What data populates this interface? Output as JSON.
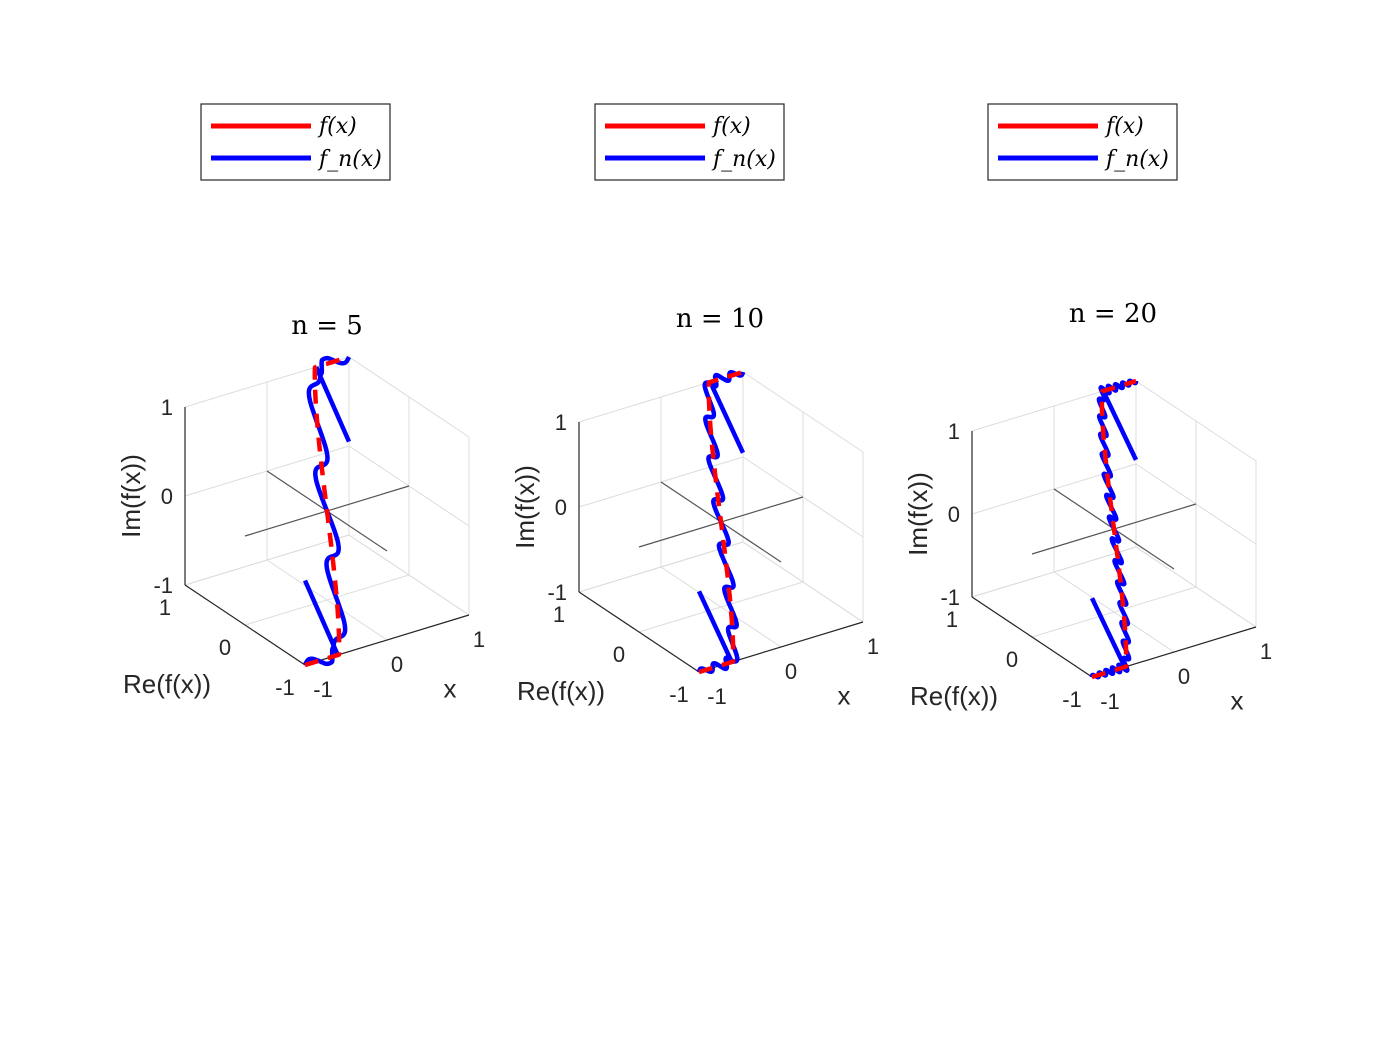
{
  "chart_data": [
    {
      "type": "line",
      "title": "n = 5",
      "n": 5,
      "xlabel": "x",
      "ylabel": "Re(f(x))",
      "zlabel": "Im(f(x))",
      "x_ticks": [
        "-1",
        "0",
        "1"
      ],
      "y_ticks": [
        "-1",
        "0",
        "1"
      ],
      "z_ticks": [
        "-1",
        "0",
        "1"
      ],
      "xlim": [
        -1,
        1
      ],
      "ylim": [
        -1,
        1
      ],
      "zlim": [
        -1,
        1
      ],
      "grid": true,
      "legend": {
        "location": "top",
        "entries": [
          "f(x)",
          "f_n(x)"
        ]
      },
      "series": [
        {
          "name": "f(x)",
          "color": "#ff0000"
        },
        {
          "name": "f_n(x)",
          "color": "#0000ff"
        }
      ]
    },
    {
      "type": "line",
      "title": "n = 10",
      "n": 10,
      "xlabel": "x",
      "ylabel": "Re(f(x))",
      "zlabel": "Im(f(x))",
      "x_ticks": [
        "-1",
        "0",
        "1"
      ],
      "y_ticks": [
        "-1",
        "0",
        "1"
      ],
      "z_ticks": [
        "-1",
        "0",
        "1"
      ],
      "xlim": [
        -1,
        1
      ],
      "ylim": [
        -1,
        1
      ],
      "zlim": [
        -1,
        1
      ],
      "grid": true,
      "legend": {
        "location": "top",
        "entries": [
          "f(x)",
          "f_n(x)"
        ]
      },
      "series": [
        {
          "name": "f(x)",
          "color": "#ff0000"
        },
        {
          "name": "f_n(x)",
          "color": "#0000ff"
        }
      ]
    },
    {
      "type": "line",
      "title": "n = 20",
      "n": 20,
      "xlabel": "x",
      "ylabel": "Re(f(x))",
      "zlabel": "Im(f(x))",
      "x_ticks": [
        "-1",
        "0",
        "1"
      ],
      "y_ticks": [
        "-1",
        "0",
        "1"
      ],
      "z_ticks": [
        "-1",
        "0",
        "1"
      ],
      "xlim": [
        -1,
        1
      ],
      "ylim": [
        -1,
        1
      ],
      "zlim": [
        -1,
        1
      ],
      "grid": true,
      "legend": {
        "location": "top",
        "entries": [
          "f(x)",
          "f_n(x)"
        ]
      },
      "series": [
        {
          "name": "f(x)",
          "color": "#ff0000"
        },
        {
          "name": "f_n(x)",
          "color": "#0000ff"
        }
      ]
    }
  ]
}
